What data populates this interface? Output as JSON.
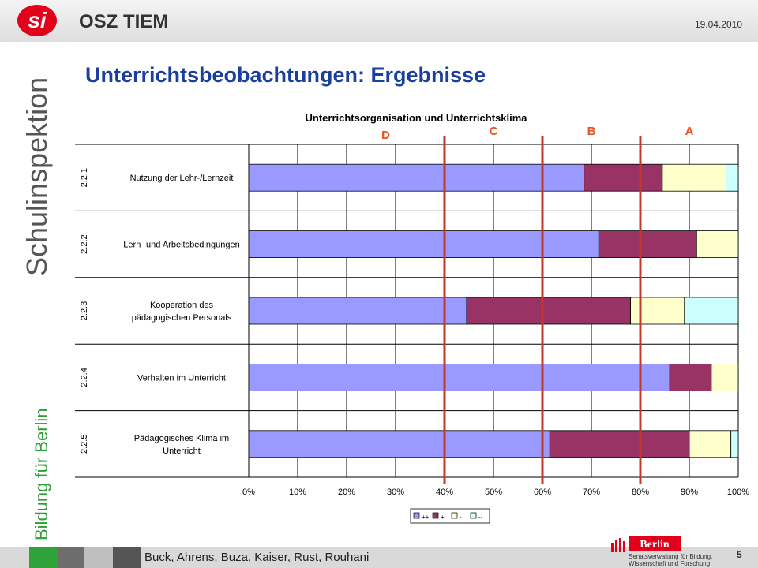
{
  "header": {
    "title": "OSZ TIEM",
    "date": "19.04.2010",
    "logo_text": "si"
  },
  "sidebar": {
    "text_main": "Schulinspektion",
    "text_sub": "Bildung für Berlin"
  },
  "main": {
    "heading": "Unterrichtsbeobachtungen: Ergebnisse"
  },
  "footer": {
    "authors": "Buck, Ahrens, Buza, Kaiser, Rust, Rouhani",
    "page": "5",
    "logo_name": "Berlin",
    "logo_line1": "Senatsverwaltung für Bildung,",
    "logo_line2": "Wissenschaft und Forschung"
  },
  "colors": {
    "brand_red": "#e3001b",
    "heading_blue": "#1a3f9c",
    "bar_pp": "#9999ff",
    "bar_p": "#993366",
    "bar_m": "#ffffcc",
    "bar_mm": "#ccffff",
    "threshold_line": "#c0392b",
    "threshold_label": "#e8501e"
  },
  "chart_data": {
    "type": "bar",
    "orientation": "horizontal",
    "stacked": true,
    "title": "Unterrichtsorganisation und Unterrichtsklima",
    "categories": [
      {
        "code": "2.2.1",
        "label": [
          "Nutzung der Lehr-/Lernzeit"
        ]
      },
      {
        "code": "2.2.2",
        "label": [
          "Lern- und Arbeitsbedingungen"
        ]
      },
      {
        "code": "2.2.3",
        "label": [
          "Kooperation des",
          "pädagogischen Personals"
        ]
      },
      {
        "code": "2.2.4",
        "label": [
          "Verhalten im Unterricht"
        ]
      },
      {
        "code": "2.2.5",
        "label": [
          "Pädagogisches Klima im",
          "Unterricht"
        ]
      }
    ],
    "series": [
      {
        "name": "++",
        "color": "#9999ff",
        "values": [
          68.5,
          71.5,
          44.5,
          86,
          61.5
        ]
      },
      {
        "name": "+",
        "color": "#993366",
        "values": [
          16,
          20,
          33.5,
          8.5,
          28.5
        ]
      },
      {
        "name": "-",
        "color": "#ffffcc",
        "values": [
          13,
          8.5,
          11,
          5.5,
          8.5
        ]
      },
      {
        "name": "--",
        "color": "#ccffff",
        "values": [
          2.5,
          0,
          11,
          0,
          1.5
        ]
      }
    ],
    "xlim": [
      0,
      100
    ],
    "x_ticks": [
      "0%",
      "10%",
      "20%",
      "30%",
      "40%",
      "50%",
      "60%",
      "70%",
      "80%",
      "90%",
      "100%"
    ],
    "grid": true,
    "legend_position": "bottom",
    "thresholds": [
      {
        "value": 40
      },
      {
        "value": 60
      },
      {
        "value": 80
      }
    ],
    "zone_labels": [
      {
        "label": "D",
        "value": 28
      },
      {
        "label": "C",
        "value": 50
      },
      {
        "label": "B",
        "value": 70
      },
      {
        "label": "A",
        "value": 90
      }
    ]
  }
}
